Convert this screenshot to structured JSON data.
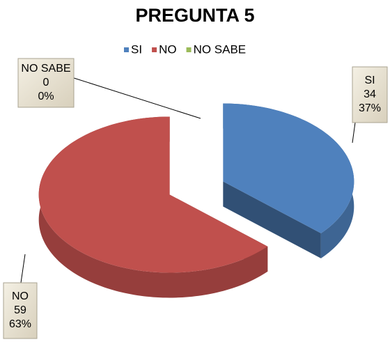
{
  "chart_data": {
    "type": "pie",
    "title": "PREGUNTA 5",
    "categories": [
      "SI",
      "NO",
      "NO SABE"
    ],
    "values": [
      34,
      59,
      0
    ],
    "percent_labels": [
      "37%",
      "63%",
      "0%"
    ],
    "colors": [
      "#4f81bd",
      "#c0504d",
      "#9bbb59"
    ],
    "legend": "top"
  }
}
